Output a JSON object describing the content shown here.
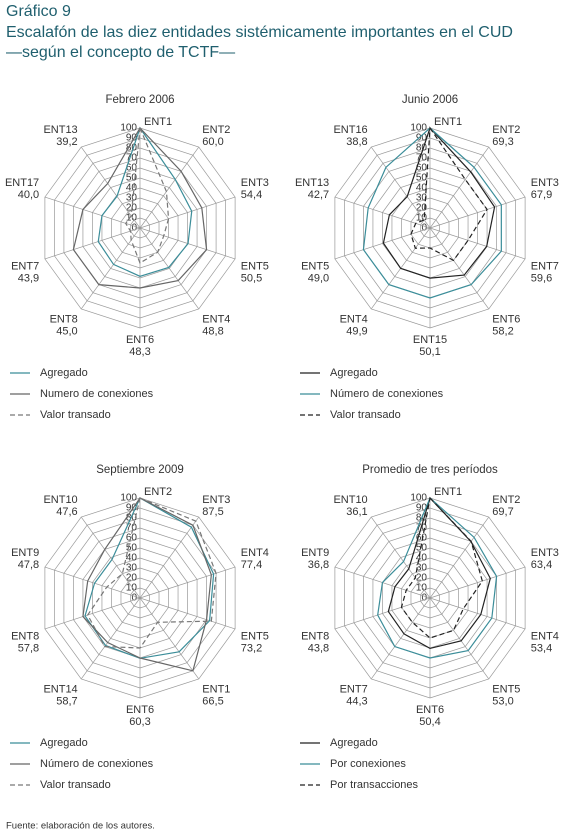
{
  "header": {
    "figure_label": "Gráfico 9",
    "title_lines": [
      "Escalafón de las diez entidades sistémicamente importantes en el CUD",
      "—según el concepto de TCTF—"
    ]
  },
  "chart_data": [
    {
      "type": "radar",
      "title": "Febrero 2006",
      "categories": [
        "ENT1",
        "ENT2",
        "ENT3",
        "ENT5",
        "ENT4",
        "ENT6",
        "ENT8",
        "ENT7",
        "ENT17",
        "ENT13"
      ],
      "rlim": [
        0,
        100
      ],
      "rticks": [
        0,
        10,
        20,
        30,
        40,
        50,
        60,
        70,
        80,
        90,
        100
      ],
      "series": [
        {
          "name": "Agregado",
          "color": "#3b8d99",
          "dash": false,
          "values": [
            100,
            60.0,
            54.4,
            50.5,
            48.8,
            48.3,
            45.0,
            43.9,
            40.0,
            39.2
          ],
          "value_labels": [
            null,
            "60,0",
            "54,4",
            "50,5",
            "48,8",
            "48,3",
            "45,0",
            "43,9",
            "40,0",
            "39,2"
          ]
        },
        {
          "name": "Numero de conexiones",
          "color": "#666666",
          "dash": false,
          "values": [
            100,
            70,
            65,
            70,
            65,
            60,
            70,
            70,
            60,
            55
          ]
        },
        {
          "name": "Valor transado",
          "color": "#777777",
          "dash": true,
          "values": [
            100,
            45,
            30,
            25,
            30,
            35,
            15,
            10,
            15,
            15
          ]
        }
      ]
    },
    {
      "type": "radar",
      "title": "Junio 2006",
      "categories": [
        "ENT1",
        "ENT2",
        "ENT3",
        "ENT7",
        "ENT6",
        "ENT15",
        "ENT4",
        "ENT5",
        "ENT13",
        "ENT16"
      ],
      "rlim": [
        0,
        100
      ],
      "rticks": [
        0,
        10,
        20,
        30,
        40,
        50,
        60,
        70,
        80,
        90,
        100
      ],
      "series": [
        {
          "name": "Agregado",
          "color": "#222222",
          "dash": false,
          "values": [
            100,
            69.3,
            67.9,
            59.6,
            58.2,
            50.1,
            49.9,
            49.0,
            42.7,
            38.8
          ],
          "value_labels": [
            null,
            "69,3",
            "67,9",
            "59,6",
            "58,2",
            "50,1",
            "49,9",
            "49,0",
            "42,7",
            "38,8"
          ]
        },
        {
          "name": "Número de conexiones",
          "color": "#3b8d99",
          "dash": false,
          "values": [
            100,
            75,
            75,
            75,
            70,
            70,
            70,
            70,
            65,
            75
          ]
        },
        {
          "name": "Valor transado",
          "color": "#222222",
          "dash": true,
          "values": [
            100,
            60,
            60,
            40,
            40,
            20,
            25,
            20,
            15,
            10
          ]
        }
      ]
    },
    {
      "type": "radar",
      "title": "Septiembre 2009",
      "categories": [
        "ENT2",
        "ENT3",
        "ENT4",
        "ENT5",
        "ENT1",
        "ENT6",
        "ENT14",
        "ENT8",
        "ENT9",
        "ENT10"
      ],
      "rlim": [
        0,
        100
      ],
      "rticks": [
        0,
        10,
        20,
        30,
        40,
        50,
        60,
        70,
        80,
        90,
        100
      ],
      "series": [
        {
          "name": "Agregado",
          "color": "#3b8d99",
          "dash": false,
          "values": [
            100,
            87.5,
            77.4,
            73.2,
            66.5,
            60.3,
            58.7,
            57.8,
            47.8,
            47.6
          ],
          "value_labels": [
            null,
            "87,5",
            "77,4",
            "73,2",
            "66,5",
            "60,3",
            "58,7",
            "57,8",
            "47,8",
            "47,6"
          ]
        },
        {
          "name": "Número de conexiones",
          "color": "#666666",
          "dash": false,
          "values": [
            100,
            90,
            75,
            70,
            90,
            60,
            55,
            60,
            55,
            60
          ]
        },
        {
          "name": "Valor transado",
          "color": "#777777",
          "dash": true,
          "values": [
            100,
            95,
            80,
            75,
            30,
            50,
            60,
            55,
            35,
            30
          ]
        }
      ]
    },
    {
      "type": "radar",
      "title": "Promedio de tres períodos",
      "categories": [
        "ENT1",
        "ENT2",
        "ENT3",
        "ENT4",
        "ENT5",
        "ENT6",
        "ENT7",
        "ENT8",
        "ENT9",
        "ENT10"
      ],
      "rlim": [
        0,
        100
      ],
      "rticks": [
        0,
        10,
        20,
        30,
        40,
        50,
        60,
        70,
        80,
        90,
        100
      ],
      "series": [
        {
          "name": "Agregado",
          "color": "#222222",
          "dash": false,
          "values": [
            100,
            69.7,
            63.4,
            53.4,
            53.0,
            50.4,
            44.3,
            43.8,
            36.8,
            36.1
          ],
          "value_labels": [
            null,
            "69,7",
            "63,4",
            "53,4",
            "53,0",
            "50,4",
            "44,3",
            "43,8",
            "36,8",
            "36,1"
          ]
        },
        {
          "name": "Por conexiones",
          "color": "#3b8d99",
          "dash": false,
          "values": [
            100,
            75,
            70,
            65,
            65,
            60,
            60,
            55,
            50,
            45
          ]
        },
        {
          "name": "Por transacciones",
          "color": "#222222",
          "dash": true,
          "values": [
            100,
            70,
            55,
            35,
            40,
            40,
            30,
            30,
            25,
            25
          ]
        }
      ]
    }
  ],
  "footer": {
    "source": "Fuente: elaboración de los autores."
  }
}
